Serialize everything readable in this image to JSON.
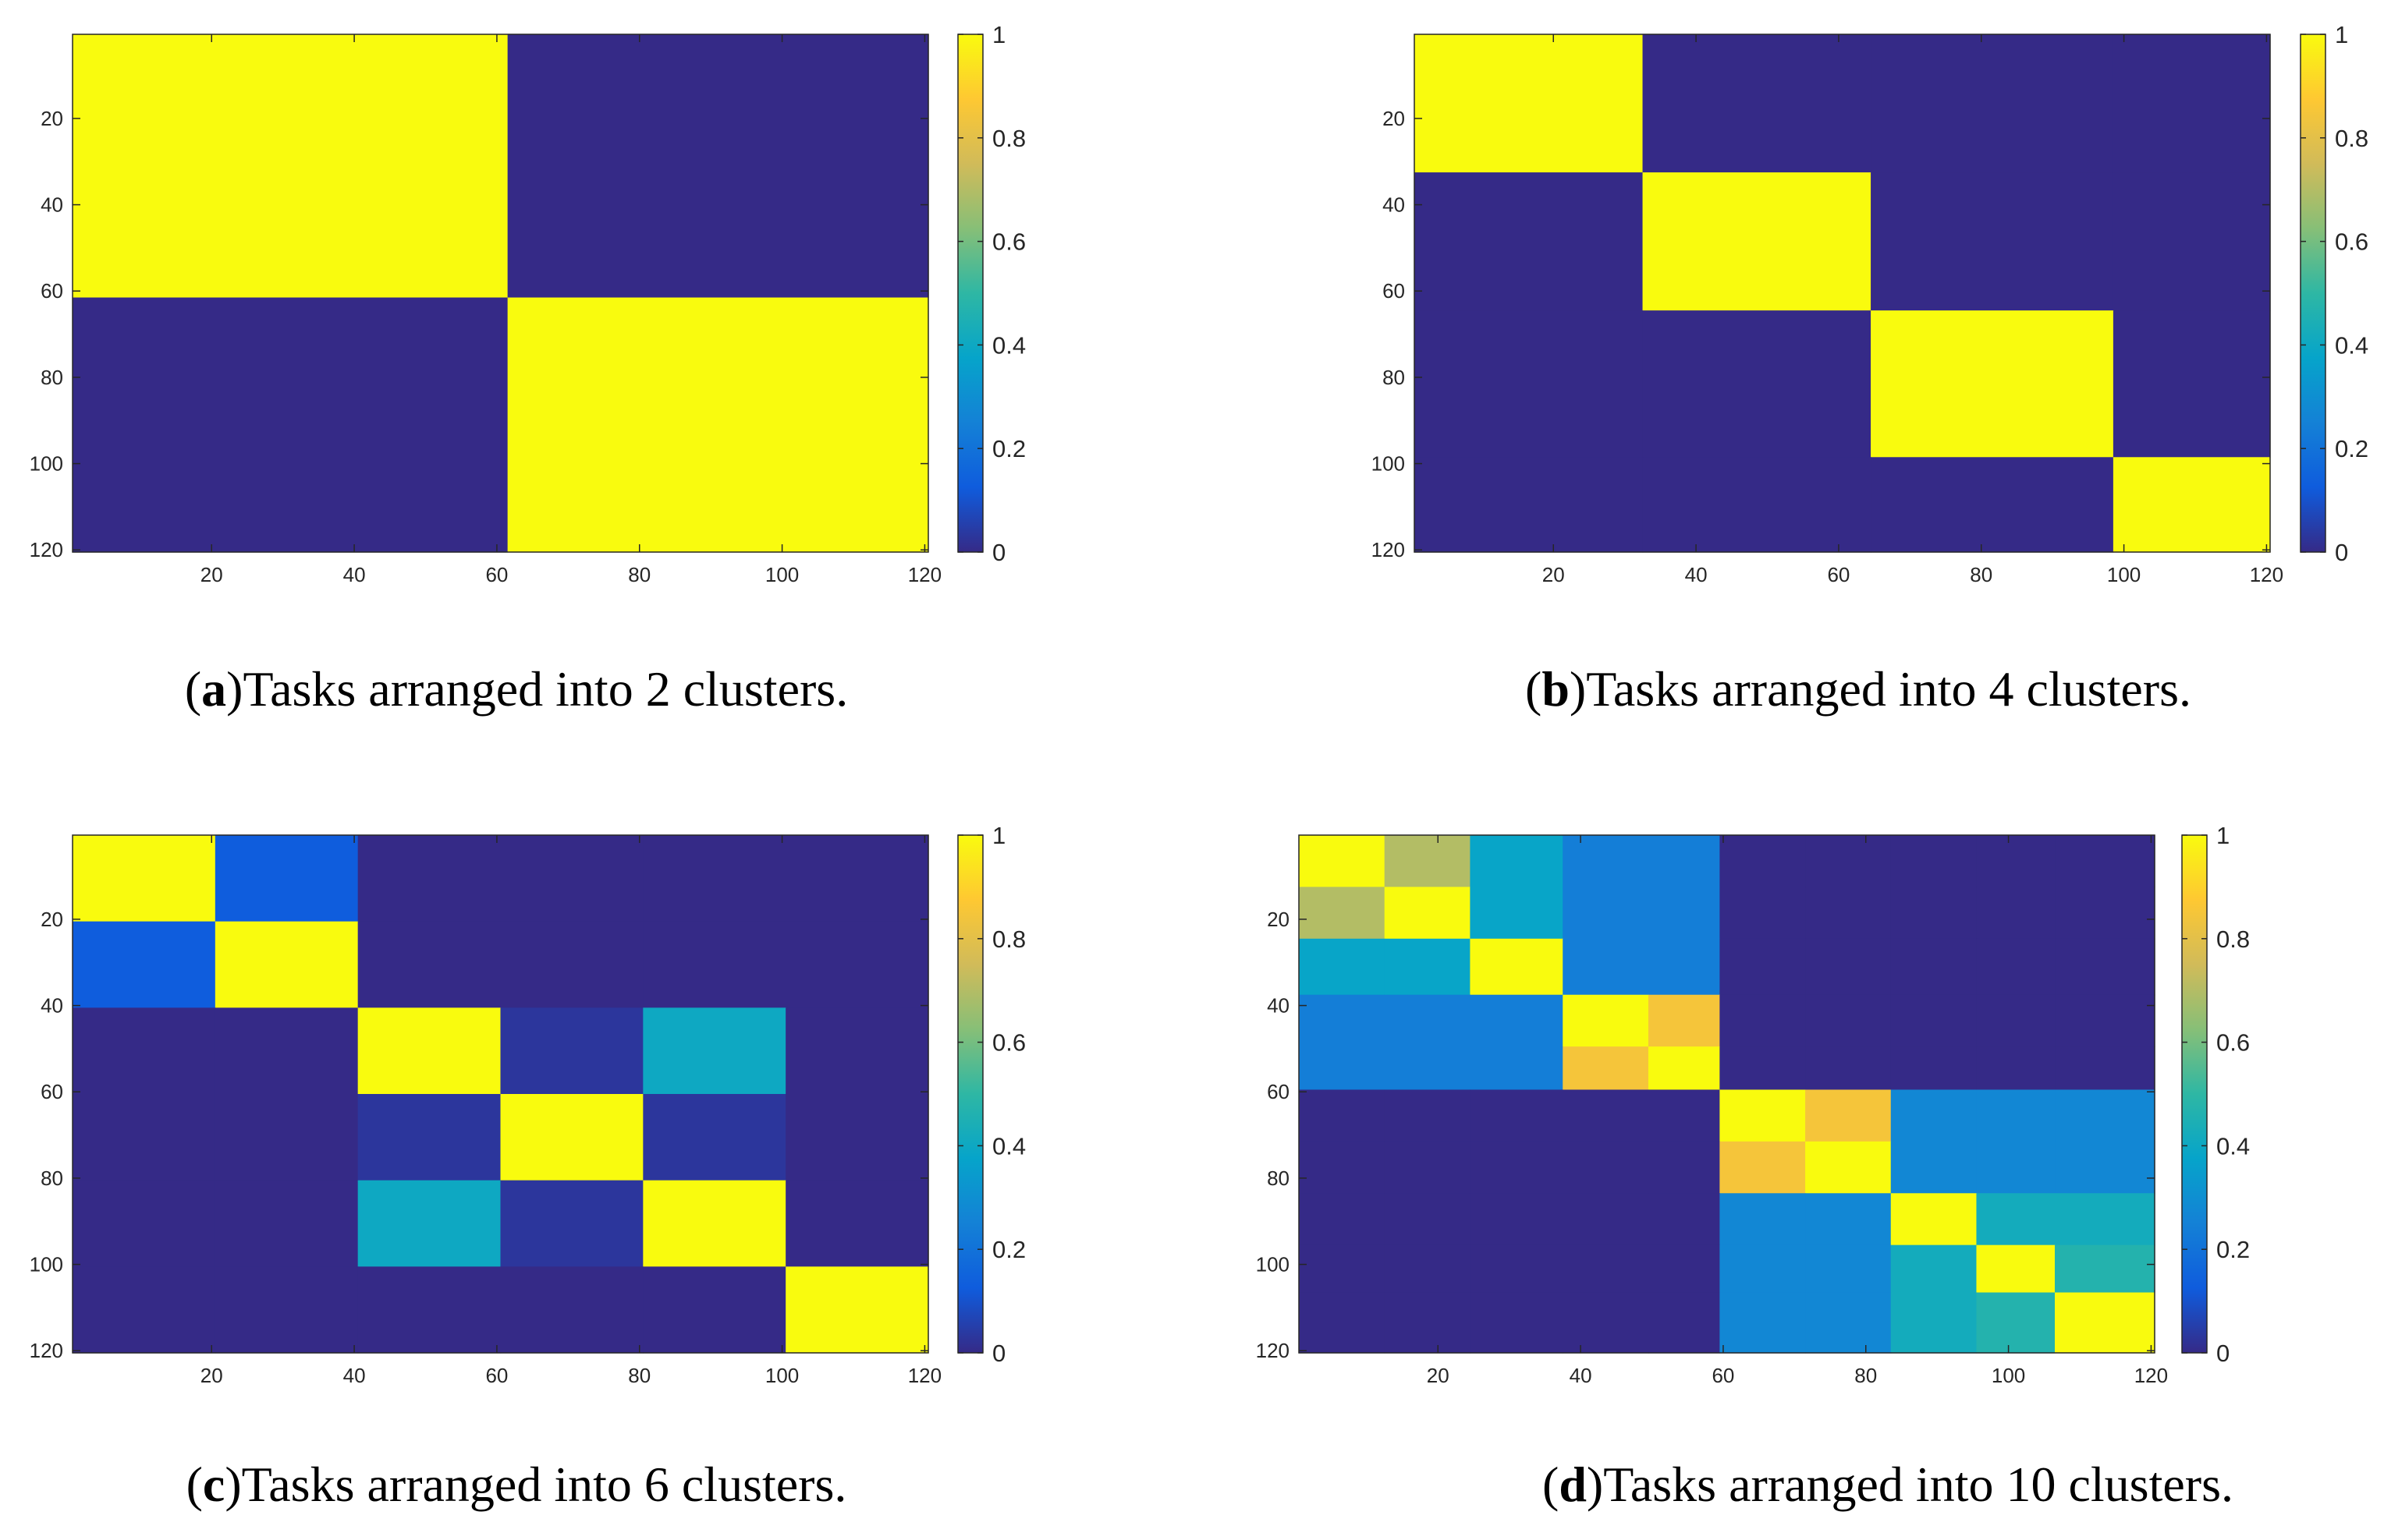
{
  "colors": {
    "parula": [
      "#352a87",
      "#0f5cdd",
      "#1481d6",
      "#06a4ca",
      "#2eb7a4",
      "#87bf77",
      "#d1bb59",
      "#fec832",
      "#f9fb0e"
    ],
    "axis": "#262626",
    "background": "#ffffff"
  },
  "chart_data": [
    {
      "id": "a",
      "type": "heatmap",
      "panel_label": "a",
      "caption": "Tasks arranged into 2 clusters.",
      "x_range": [
        0.5,
        120.5
      ],
      "y_range": [
        0.5,
        120.5
      ],
      "x_ticks": [
        20,
        40,
        60,
        80,
        100,
        120
      ],
      "y_ticks": [
        20,
        40,
        60,
        80,
        100,
        120
      ],
      "colorbar": {
        "range": [
          0,
          1
        ],
        "ticks": [
          0,
          0.2,
          0.4,
          0.6,
          0.8,
          1
        ],
        "tick_labels": [
          "0",
          "0.2",
          "0.4",
          "0.6",
          "0.8",
          "1"
        ]
      },
      "cluster_boundaries": [
        0,
        61,
        120
      ],
      "matrix": [
        [
          1,
          0
        ],
        [
          0,
          1
        ]
      ]
    },
    {
      "id": "b",
      "type": "heatmap",
      "panel_label": "b",
      "caption": "Tasks arranged into 4 clusters.",
      "x_range": [
        0.5,
        120.5
      ],
      "y_range": [
        0.5,
        120.5
      ],
      "x_ticks": [
        20,
        40,
        60,
        80,
        100,
        120
      ],
      "y_ticks": [
        20,
        40,
        60,
        80,
        100,
        120
      ],
      "colorbar": {
        "range": [
          0,
          1
        ],
        "ticks": [
          0,
          0.2,
          0.4,
          0.6,
          0.8,
          1
        ],
        "tick_labels": [
          "0",
          "0.2",
          "0.4",
          "0.6",
          "0.8",
          "1"
        ]
      },
      "cluster_boundaries": [
        0,
        32,
        64,
        98,
        120
      ],
      "matrix": [
        [
          1,
          0,
          0,
          0
        ],
        [
          0,
          1,
          0,
          0
        ],
        [
          0,
          0,
          1,
          0
        ],
        [
          0,
          0,
          0,
          1
        ]
      ]
    },
    {
      "id": "c",
      "type": "heatmap",
      "panel_label": "c",
      "caption": "Tasks arranged into 6 clusters.",
      "x_range": [
        0.5,
        120.5
      ],
      "y_range": [
        0.5,
        120.5
      ],
      "x_ticks": [
        20,
        40,
        60,
        80,
        100,
        120
      ],
      "y_ticks": [
        20,
        40,
        60,
        80,
        100,
        120
      ],
      "colorbar": {
        "range": [
          0,
          1
        ],
        "ticks": [
          0,
          0.2,
          0.4,
          0.6,
          0.8,
          1
        ],
        "tick_labels": [
          "0",
          "0.2",
          "0.4",
          "0.6",
          "0.8",
          "1"
        ]
      },
      "cluster_boundaries": [
        0,
        20,
        40,
        60,
        80,
        100,
        120
      ],
      "matrix": [
        [
          1,
          0.13,
          0,
          0,
          0,
          0
        ],
        [
          0.13,
          1,
          0,
          0,
          0,
          0
        ],
        [
          0,
          0,
          1,
          0.03,
          0.4,
          0
        ],
        [
          0,
          0,
          0.03,
          1,
          0.03,
          0
        ],
        [
          0,
          0,
          0.4,
          0.03,
          1,
          0
        ],
        [
          0,
          0,
          0,
          0,
          0,
          1
        ]
      ]
    },
    {
      "id": "d",
      "type": "heatmap",
      "panel_label": "d",
      "caption": "Tasks arranged into 10 clusters.",
      "x_range": [
        0.5,
        120.5
      ],
      "y_range": [
        0.5,
        120.5
      ],
      "x_ticks": [
        20,
        40,
        60,
        80,
        100,
        120
      ],
      "y_ticks": [
        20,
        40,
        60,
        80,
        100,
        120
      ],
      "colorbar": {
        "range": [
          0,
          1
        ],
        "ticks": [
          0,
          0.2,
          0.4,
          0.6,
          0.8,
          1
        ],
        "tick_labels": [
          "0",
          "0.2",
          "0.4",
          "0.6",
          "0.8",
          "1"
        ]
      },
      "cluster_boundaries": [
        0,
        12,
        24,
        37,
        49,
        59,
        71,
        83,
        95,
        106,
        120
      ],
      "matrix": [
        [
          1,
          0.7,
          0.38,
          0.24,
          0.24,
          0,
          0,
          0,
          0,
          0
        ],
        [
          0.7,
          1,
          0.38,
          0.24,
          0.24,
          0,
          0,
          0,
          0,
          0
        ],
        [
          0.38,
          0.38,
          1,
          0.24,
          0.24,
          0,
          0,
          0,
          0,
          0
        ],
        [
          0.24,
          0.24,
          0.24,
          1,
          0.85,
          0,
          0,
          0,
          0,
          0
        ],
        [
          0.24,
          0.24,
          0.24,
          0.85,
          1,
          0,
          0,
          0,
          0,
          0
        ],
        [
          0,
          0,
          0,
          0,
          0,
          1,
          0.85,
          0.27,
          0.27,
          0.27
        ],
        [
          0,
          0,
          0,
          0,
          0,
          0.85,
          1,
          0.27,
          0.27,
          0.27
        ],
        [
          0,
          0,
          0,
          0,
          0,
          0.27,
          0.27,
          1,
          0.42,
          0.42
        ],
        [
          0,
          0,
          0,
          0,
          0,
          0.27,
          0.27,
          0.42,
          1,
          0.47
        ],
        [
          0,
          0,
          0,
          0,
          0,
          0.27,
          0.27,
          0.42,
          0.47,
          1
        ]
      ]
    }
  ]
}
